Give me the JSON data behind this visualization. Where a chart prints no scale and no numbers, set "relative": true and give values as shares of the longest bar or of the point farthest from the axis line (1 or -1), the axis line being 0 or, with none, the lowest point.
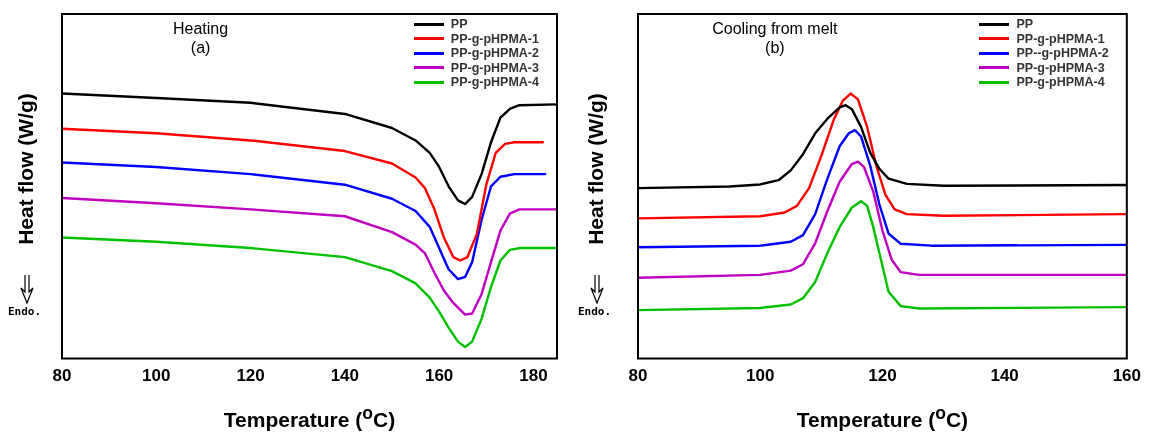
{
  "chart_data": [
    {
      "type": "line",
      "title": "Heating",
      "subtitle": "(a)",
      "xlabel": "Temperature ($^{o}$C)",
      "ylabel": "Heat flow (W/g)",
      "annotations": [
        "Endo."
      ],
      "relative": true,
      "xlim": [
        80,
        185
      ],
      "xticks": [
        80,
        100,
        120,
        140,
        160,
        180
      ],
      "legend": "top right",
      "marker": "none",
      "line_style": "solid",
      "series": [
        {
          "name": "PP",
          "color": "#000000",
          "x": [
            80,
            100,
            120,
            140,
            150,
            155,
            158,
            160,
            162,
            164,
            165.5,
            167,
            169,
            171,
            173,
            175,
            177,
            185
          ],
          "values": [
            1.0,
            0.983,
            0.965,
            0.923,
            0.87,
            0.823,
            0.776,
            0.723,
            0.65,
            0.597,
            0.583,
            0.61,
            0.696,
            0.816,
            0.909,
            0.942,
            0.956,
            0.959
          ]
        },
        {
          "name": "PP-g-pHPMA-1",
          "color": "#ff0000",
          "x": [
            80,
            100,
            120,
            140,
            150,
            155,
            157,
            159,
            161,
            163,
            164.5,
            166,
            168,
            170,
            172,
            174,
            176,
            182
          ],
          "values": [
            0.867,
            0.85,
            0.823,
            0.783,
            0.736,
            0.683,
            0.643,
            0.563,
            0.457,
            0.383,
            0.37,
            0.383,
            0.47,
            0.656,
            0.776,
            0.81,
            0.816,
            0.816
          ]
        },
        {
          "name": "PP-g-pHPMA-2",
          "color": "#0000ff",
          "x": [
            80,
            100,
            120,
            140,
            150,
            155,
            158,
            160,
            162,
            164,
            165.5,
            167,
            169,
            171,
            173,
            176,
            182.5
          ],
          "values": [
            0.74,
            0.723,
            0.696,
            0.656,
            0.603,
            0.557,
            0.497,
            0.417,
            0.337,
            0.3,
            0.308,
            0.364,
            0.523,
            0.65,
            0.686,
            0.696,
            0.696
          ]
        },
        {
          "name": "PP-g-pHPMA-3",
          "color": "#c000c0",
          "x": [
            80,
            100,
            120,
            140,
            150,
            155,
            157,
            159,
            161,
            163,
            165.5,
            167,
            169,
            171,
            173,
            175,
            177,
            185
          ],
          "values": [
            0.606,
            0.586,
            0.563,
            0.537,
            0.477,
            0.43,
            0.397,
            0.324,
            0.257,
            0.21,
            0.166,
            0.17,
            0.243,
            0.364,
            0.483,
            0.547,
            0.563,
            0.563
          ]
        },
        {
          "name": "PP-g-pHPMA-4",
          "color": "#00c000",
          "x": [
            80,
            100,
            120,
            140,
            150,
            155,
            158,
            160,
            162,
            164,
            165.5,
            167,
            169,
            171,
            173,
            175,
            177,
            185
          ],
          "values": [
            0.457,
            0.441,
            0.417,
            0.383,
            0.33,
            0.284,
            0.23,
            0.177,
            0.117,
            0.064,
            0.044,
            0.064,
            0.15,
            0.27,
            0.37,
            0.41,
            0.417,
            0.417
          ]
        }
      ]
    },
    {
      "type": "line",
      "title": "Cooling from melt",
      "subtitle": "(b)",
      "xlabel": "Temperature ($^{o}$C)",
      "ylabel": "Heat flow (W/g)",
      "annotations": [
        "Endo."
      ],
      "relative": true,
      "xlim": [
        80,
        160
      ],
      "xticks": [
        80,
        100,
        120,
        140,
        160
      ],
      "legend": "top right",
      "marker": "none",
      "line_style": "solid",
      "series": [
        {
          "name": "PP",
          "color": "#000000",
          "x": [
            80,
            95,
            100,
            103,
            105,
            107,
            109,
            111,
            113,
            114,
            115,
            116.5,
            118,
            119.5,
            121,
            124,
            130,
            160
          ],
          "values": [
            0.643,
            0.649,
            0.657,
            0.673,
            0.71,
            0.771,
            0.85,
            0.905,
            0.948,
            0.956,
            0.941,
            0.874,
            0.777,
            0.716,
            0.679,
            0.659,
            0.652,
            0.655
          ]
        },
        {
          "name": "PP-g-pHPMA-1",
          "color": "#ff0000",
          "x": [
            80,
            100,
            104,
            106,
            108,
            110,
            112,
            113.5,
            114.8,
            116,
            117.5,
            119,
            120.5,
            122,
            124,
            130,
            160
          ],
          "values": [
            0.529,
            0.537,
            0.551,
            0.576,
            0.643,
            0.765,
            0.899,
            0.972,
            1.0,
            0.978,
            0.874,
            0.728,
            0.618,
            0.563,
            0.545,
            0.539,
            0.545
          ]
        },
        {
          "name": "PP--g-pHPMA-2",
          "color": "#0000ff",
          "x": [
            80,
            100,
            105,
            107,
            109,
            111,
            113,
            114.5,
            115.5,
            116.5,
            118,
            119.5,
            121,
            123,
            128,
            160
          ],
          "values": [
            0.42,
            0.426,
            0.441,
            0.466,
            0.545,
            0.679,
            0.801,
            0.85,
            0.862,
            0.838,
            0.728,
            0.582,
            0.472,
            0.433,
            0.426,
            0.429
          ]
        },
        {
          "name": "PP-g-pHPMA-3",
          "color": "#c000c0",
          "x": [
            80,
            100,
            105,
            107,
            109,
            111,
            113,
            115,
            116,
            117,
            118.5,
            120,
            121.5,
            123,
            126,
            160
          ],
          "values": [
            0.305,
            0.316,
            0.332,
            0.356,
            0.435,
            0.557,
            0.667,
            0.734,
            0.743,
            0.722,
            0.63,
            0.484,
            0.374,
            0.326,
            0.316,
            0.316
          ]
        },
        {
          "name": "PP-g-pHPMA-4",
          "color": "#00c000",
          "x": [
            80,
            100,
            105,
            107,
            109,
            111,
            113,
            115,
            116.5,
            117.5,
            118.5,
            120,
            121,
            123,
            126,
            160
          ],
          "values": [
            0.183,
            0.191,
            0.204,
            0.228,
            0.289,
            0.399,
            0.496,
            0.57,
            0.594,
            0.576,
            0.496,
            0.35,
            0.252,
            0.198,
            0.189,
            0.194
          ]
        }
      ]
    }
  ]
}
